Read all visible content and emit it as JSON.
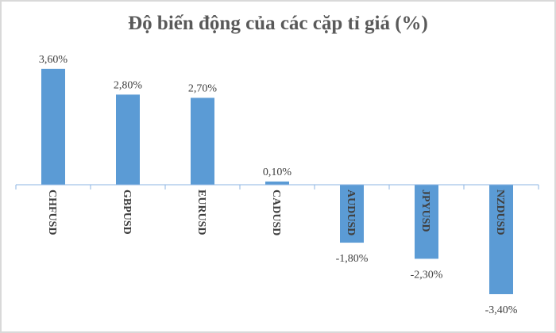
{
  "chart_data": {
    "type": "bar",
    "title": "Độ biến động của các cặp tỉ giá (%)",
    "categories": [
      "CHFUSD",
      "GBPUSD",
      "EURUSD",
      "CADUSD",
      "AUDUSD",
      "JPYUSD",
      "NZDUSD"
    ],
    "values": [
      3.6,
      2.8,
      2.7,
      0.1,
      -1.8,
      -2.3,
      -3.4
    ],
    "data_labels": [
      "3,60%",
      "2,80%",
      "2,70%",
      "0,10%",
      "-1,80%",
      "-2,30%",
      "-3,40%"
    ],
    "xlabel": "",
    "ylabel": "",
    "ylim": [
      -3.4,
      3.6
    ],
    "grid": false,
    "legend": "none",
    "bar_color": "#5b9bd5",
    "axis_color": "#8eb4e3"
  }
}
